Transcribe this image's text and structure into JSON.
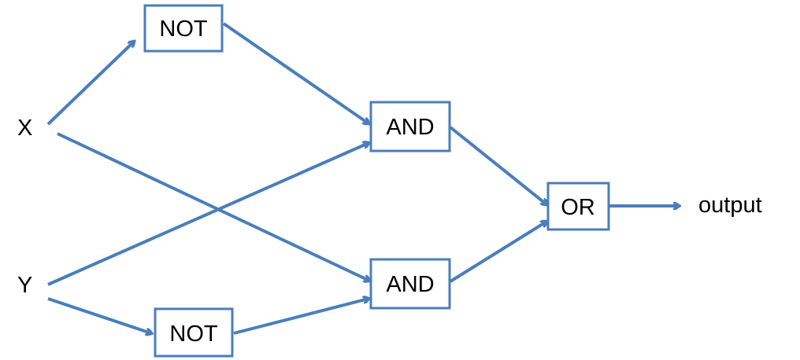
{
  "diagram": {
    "inputs": {
      "x": "X",
      "y": "Y"
    },
    "gates": {
      "not_top": "NOT",
      "not_bottom": "NOT",
      "and_top": "AND",
      "and_bottom": "AND",
      "or": "OR"
    },
    "output": "output"
  },
  "colors": {
    "arrow": "#4a7ebb",
    "box_border": "#4a7ebb",
    "text": "#000000"
  }
}
